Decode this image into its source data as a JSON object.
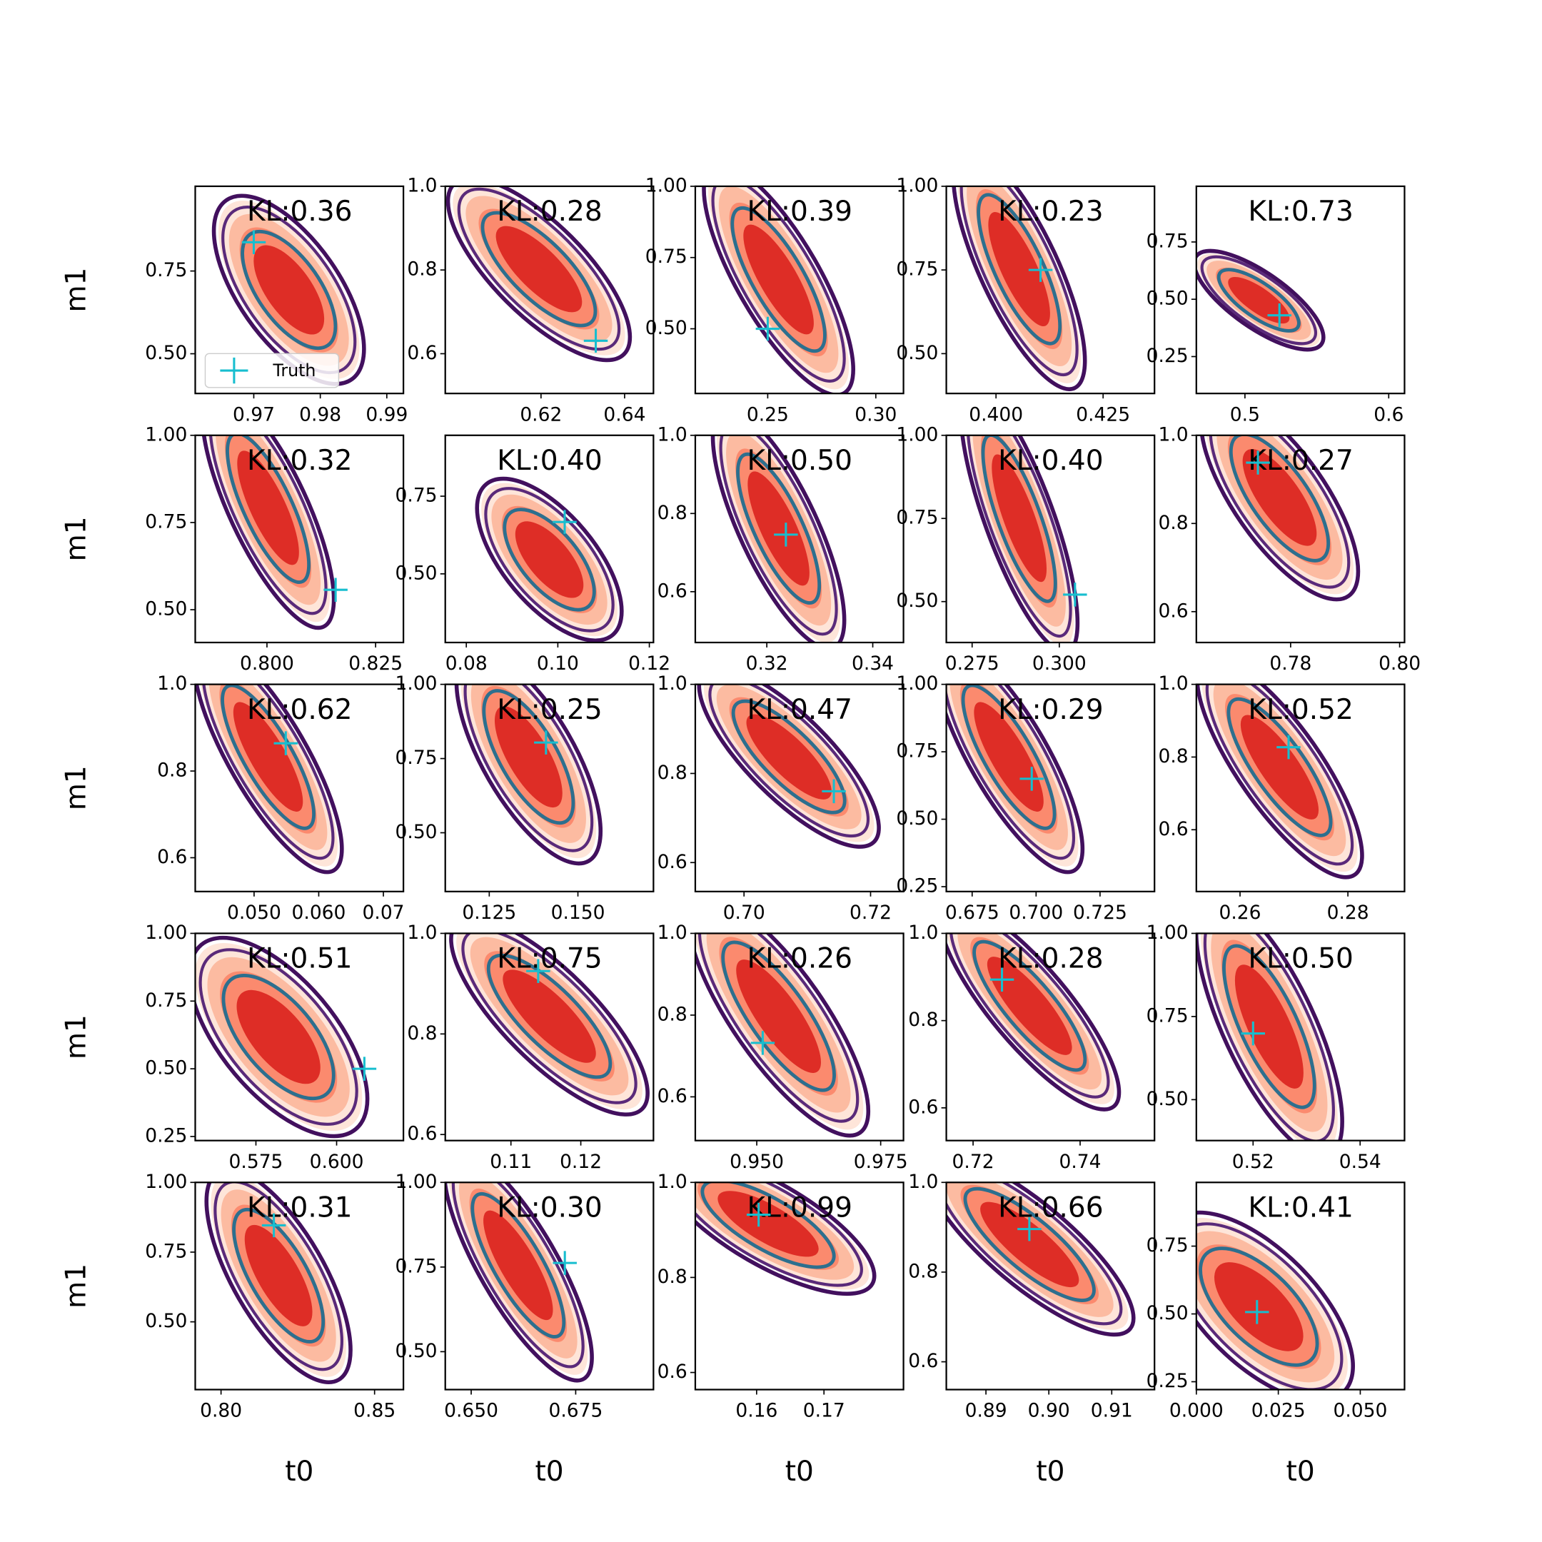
{
  "chart_data": [
    {
      "type": "scatter",
      "annotation": "KL:0.36",
      "ylabel": "m1",
      "legend": "lower left",
      "series": [
        {
          "name": "Truth",
          "color": "#17becf",
          "x": [
            0.97
          ],
          "y": [
            0.837
          ]
        }
      ],
      "xlim": [
        0.9612,
        0.9925
      ],
      "ylim": [
        0.38,
        1.006
      ],
      "xticks": [
        0.97,
        0.98,
        0.99
      ],
      "yticks": [
        {
          "value": 0.5,
          "label": "0.50"
        },
        0.75
      ]
    },
    {
      "type": "scatter",
      "annotation": "KL:0.28",
      "series": [
        {
          "color": "#17becf",
          "x": [
            0.6331
          ],
          "y": [
            0.631
          ]
        }
      ],
      "xlim": [
        0.5971,
        0.6469
      ],
      "ylim": [
        0.505,
        1.0
      ],
      "xticks": [
        0.62,
        0.64
      ],
      "yticks": [
        0.6,
        0.8,
        {
          "value": 1.0,
          "label": "1.0"
        }
      ]
    },
    {
      "type": "scatter",
      "annotation": "KL:0.39",
      "series": [
        {
          "color": "#17becf",
          "x": [
            0.25
          ],
          "y": [
            0.5
          ]
        }
      ],
      "xlim": [
        0.2165,
        0.3128
      ],
      "ylim": [
        0.273,
        1.0
      ],
      "xticks": [
        0.25,
        {
          "value": 0.3,
          "label": "0.30"
        }
      ],
      "yticks": [
        {
          "value": 0.5,
          "label": "0.50"
        },
        0.75,
        {
          "value": 1.0,
          "label": "1.00"
        }
      ]
    },
    {
      "type": "scatter",
      "annotation": "KL:0.23",
      "series": [
        {
          "color": "#17becf",
          "x": [
            0.4104
          ],
          "y": [
            0.75
          ]
        }
      ],
      "xlim": [
        0.3884,
        0.437
      ],
      "ylim": [
        0.381,
        1.0
      ],
      "xticks": [
        {
          "value": 0.4,
          "label": "0.400"
        },
        0.425
      ],
      "yticks": [
        {
          "value": 0.5,
          "label": "0.50"
        },
        0.75,
        {
          "value": 1.0,
          "label": "1.00"
        }
      ]
    },
    {
      "type": "scatter",
      "annotation": "KL:0.73",
      "series": [
        {
          "color": "#17becf",
          "x": [
            0.524
          ],
          "y": [
            0.43
          ]
        }
      ],
      "xlim": [
        0.4662,
        0.611
      ],
      "ylim": [
        0.089,
        0.993
      ],
      "xticks": [
        0.5,
        0.6
      ],
      "yticks": [
        0.25,
        {
          "value": 0.5,
          "label": "0.50"
        },
        0.75
      ]
    },
    {
      "type": "scatter",
      "annotation": "KL:0.32",
      "ylabel": "m1",
      "series": [
        {
          "color": "#17becf",
          "x": [
            0.8158
          ],
          "y": [
            0.557
          ]
        }
      ],
      "xlim": [
        0.7835,
        0.8314
      ],
      "ylim": [
        0.406,
        1.0
      ],
      "xticks": [
        {
          "value": 0.8,
          "label": "0.800"
        },
        0.825
      ],
      "yticks": [
        {
          "value": 0.5,
          "label": "0.50"
        },
        0.75,
        {
          "value": 1.0,
          "label": "1.00"
        }
      ]
    },
    {
      "type": "scatter",
      "annotation": "KL:0.40",
      "series": [
        {
          "color": "#17becf",
          "x": [
            0.1015
          ],
          "y": [
            0.667
          ]
        }
      ],
      "xlim": [
        0.0754,
        0.1209
      ],
      "ylim": [
        0.279,
        0.946
      ],
      "xticks": [
        0.08,
        {
          "value": 0.1,
          "label": "0.10"
        },
        0.12
      ],
      "yticks": [
        {
          "value": 0.5,
          "label": "0.50"
        },
        0.75
      ]
    },
    {
      "type": "scatter",
      "annotation": "KL:0.50",
      "series": [
        {
          "color": "#17becf",
          "x": [
            0.3236
          ],
          "y": [
            0.746
          ]
        }
      ],
      "xlim": [
        0.3065,
        0.3458
      ],
      "ylim": [
        0.47,
        1.0
      ],
      "xticks": [
        0.32,
        0.34
      ],
      "yticks": [
        0.6,
        0.8,
        {
          "value": 1.0,
          "label": "1.0"
        }
      ]
    },
    {
      "type": "scatter",
      "annotation": "KL:0.40",
      "series": [
        {
          "color": "#17becf",
          "x": [
            0.3045
          ],
          "y": [
            0.521
          ]
        }
      ],
      "xlim": [
        0.2676,
        0.3273
      ],
      "ylim": [
        0.377,
        1.0
      ],
      "xticks": [
        0.275,
        {
          "value": 0.3,
          "label": "0.300"
        }
      ],
      "yticks": [
        {
          "value": 0.5,
          "label": "0.50"
        },
        0.75,
        {
          "value": 1.0,
          "label": "1.00"
        }
      ]
    },
    {
      "type": "scatter",
      "annotation": "KL:0.27",
      "series": [
        {
          "color": "#17becf",
          "x": [
            0.774
          ],
          "y": [
            0.938
          ]
        }
      ],
      "xlim": [
        0.7627,
        0.8009
      ],
      "ylim": [
        0.53,
        1.0
      ],
      "xticks": [
        0.78,
        {
          "value": 0.8,
          "label": "0.80"
        }
      ],
      "yticks": [
        0.6,
        0.8,
        {
          "value": 1.0,
          "label": "1.0"
        }
      ]
    },
    {
      "type": "scatter",
      "annotation": "KL:0.62",
      "ylabel": "m1",
      "series": [
        {
          "color": "#17becf",
          "x": [
            0.0549
          ],
          "y": [
            0.864
          ]
        }
      ],
      "xlim": [
        0.0409,
        0.0731
      ],
      "ylim": [
        0.522,
        1.0
      ],
      "xticks": [
        {
          "value": 0.05,
          "label": "0.050"
        },
        {
          "value": 0.06,
          "label": "0.060"
        },
        0.07
      ],
      "yticks": [
        0.6,
        0.8,
        {
          "value": 1.0,
          "label": "1.0"
        }
      ]
    },
    {
      "type": "scatter",
      "annotation": "KL:0.25",
      "series": [
        {
          "color": "#17becf",
          "x": [
            0.141
          ],
          "y": [
            0.804
          ]
        }
      ],
      "xlim": [
        0.1126,
        0.1713
      ],
      "ylim": [
        0.302,
        1.0
      ],
      "xticks": [
        0.125,
        {
          "value": 0.15,
          "label": "0.150"
        }
      ],
      "yticks": [
        {
          "value": 0.5,
          "label": "0.50"
        },
        0.75,
        {
          "value": 1.0,
          "label": "1.00"
        }
      ]
    },
    {
      "type": "scatter",
      "annotation": "KL:0.47",
      "series": [
        {
          "color": "#17becf",
          "x": [
            0.7142
          ],
          "y": [
            0.76
          ]
        }
      ],
      "xlim": [
        0.6923,
        0.7252
      ],
      "ylim": [
        0.535,
        1.0
      ],
      "xticks": [
        {
          "value": 0.7,
          "label": "0.70"
        },
        0.72
      ],
      "yticks": [
        0.6,
        0.8,
        {
          "value": 1.0,
          "label": "1.0"
        }
      ]
    },
    {
      "type": "scatter",
      "annotation": "KL:0.29",
      "series": [
        {
          "color": "#17becf",
          "x": [
            0.6983
          ],
          "y": [
            0.65
          ]
        }
      ],
      "xlim": [
        0.6649,
        0.7463
      ],
      "ylim": [
        0.232,
        1.0
      ],
      "xticks": [
        0.675,
        {
          "value": 0.7,
          "label": "0.700"
        },
        0.725
      ],
      "yticks": [
        0.25,
        {
          "value": 0.5,
          "label": "0.50"
        },
        0.75,
        {
          "value": 1.0,
          "label": "1.00"
        }
      ]
    },
    {
      "type": "scatter",
      "annotation": "KL:0.52",
      "series": [
        {
          "color": "#17becf",
          "x": [
            0.269
          ],
          "y": [
            0.827
          ]
        }
      ],
      "xlim": [
        0.2519,
        0.2905
      ],
      "ylim": [
        0.43,
        1.0
      ],
      "xticks": [
        0.26,
        0.28
      ],
      "yticks": [
        0.6,
        0.8,
        {
          "value": 1.0,
          "label": "1.0"
        }
      ]
    },
    {
      "type": "scatter",
      "annotation": "KL:0.51",
      "ylabel": "m1",
      "series": [
        {
          "color": "#17becf",
          "x": [
            0.6086
          ],
          "y": [
            0.5
          ]
        }
      ],
      "xlim": [
        0.5562,
        0.6207
      ],
      "ylim": [
        0.235,
        1.0
      ],
      "xticks": [
        0.575,
        {
          "value": 0.6,
          "label": "0.600"
        }
      ],
      "yticks": [
        0.25,
        {
          "value": 0.5,
          "label": "0.50"
        },
        0.75,
        {
          "value": 1.0,
          "label": "1.00"
        }
      ]
    },
    {
      "type": "scatter",
      "annotation": "KL:0.75",
      "series": [
        {
          "color": "#17becf",
          "x": [
            0.1139
          ],
          "y": [
            0.925
          ]
        }
      ],
      "xlim": [
        0.1006,
        0.1304
      ],
      "ylim": [
        0.588,
        1.0
      ],
      "xticks": [
        0.11,
        0.12
      ],
      "yticks": [
        0.6,
        0.8,
        {
          "value": 1.0,
          "label": "1.0"
        }
      ]
    },
    {
      "type": "scatter",
      "annotation": "KL:0.26",
      "series": [
        {
          "color": "#17becf",
          "x": [
            0.9512
          ],
          "y": [
            0.732
          ]
        }
      ],
      "xlim": [
        0.9376,
        0.9796
      ],
      "ylim": [
        0.493,
        1.0
      ],
      "xticks": [
        {
          "value": 0.95,
          "label": "0.950"
        },
        0.975
      ],
      "yticks": [
        0.6,
        0.8,
        {
          "value": 1.0,
          "label": "1.0"
        }
      ]
    },
    {
      "type": "scatter",
      "annotation": "KL:0.28",
      "series": [
        {
          "color": "#17becf",
          "x": [
            0.7254
          ],
          "y": [
            0.894
          ]
        }
      ],
      "xlim": [
        0.715,
        0.7539
      ],
      "ylim": [
        0.525,
        1.0
      ],
      "xticks": [
        0.72,
        0.74
      ],
      "yticks": [
        0.6,
        0.8,
        {
          "value": 1.0,
          "label": "1.0"
        }
      ]
    },
    {
      "type": "scatter",
      "annotation": "KL:0.50",
      "series": [
        {
          "color": "#17becf",
          "x": [
            0.52
          ],
          "y": [
            0.699
          ]
        }
      ],
      "xlim": [
        0.5094,
        0.5483
      ],
      "ylim": [
        0.377,
        1.0
      ],
      "xticks": [
        0.52,
        0.54
      ],
      "yticks": [
        {
          "value": 0.5,
          "label": "0.50"
        },
        0.75,
        {
          "value": 1.0,
          "label": "1.00"
        }
      ]
    },
    {
      "type": "scatter",
      "annotation": "KL:0.31",
      "ylabel": "m1",
      "xlabel": "t0",
      "series": [
        {
          "color": "#17becf",
          "x": [
            0.8172
          ],
          "y": [
            0.846
          ]
        }
      ],
      "xlim": [
        0.7916,
        0.8594
      ],
      "ylim": [
        0.257,
        1.0
      ],
      "xticks": [
        {
          "value": 0.8,
          "label": "0.80"
        },
        0.85
      ],
      "yticks": [
        {
          "value": 0.5,
          "label": "0.50"
        },
        0.75,
        {
          "value": 1.0,
          "label": "1.00"
        }
      ]
    },
    {
      "type": "scatter",
      "annotation": "KL:0.30",
      "xlabel": "t0",
      "series": [
        {
          "color": "#17becf",
          "x": [
            0.6724
          ],
          "y": [
            0.762
          ]
        }
      ],
      "xlim": [
        0.6438,
        0.6936
      ],
      "ylim": [
        0.388,
        1.0
      ],
      "xticks": [
        {
          "value": 0.65,
          "label": "0.650"
        },
        0.675
      ],
      "yticks": [
        {
          "value": 0.5,
          "label": "0.50"
        },
        0.75,
        {
          "value": 1.0,
          "label": "1.00"
        }
      ]
    },
    {
      "type": "scatter",
      "annotation": "KL:0.99",
      "xlabel": "t0",
      "series": [
        {
          "color": "#17becf",
          "x": [
            0.1603
          ],
          "y": [
            0.932
          ]
        }
      ],
      "xlim": [
        0.1509,
        0.1818
      ],
      "ylim": [
        0.564,
        1.0
      ],
      "xticks": [
        0.16,
        0.17
      ],
      "yticks": [
        0.6,
        0.8,
        {
          "value": 1.0,
          "label": "1.0"
        }
      ]
    },
    {
      "type": "scatter",
      "annotation": "KL:0.66",
      "xlabel": "t0",
      "series": [
        {
          "color": "#17becf",
          "x": [
            0.8969
          ],
          "y": [
            0.896
          ]
        }
      ],
      "xlim": [
        0.8837,
        0.9168
      ],
      "ylim": [
        0.538,
        1.0
      ],
      "xticks": [
        0.89,
        {
          "value": 0.9,
          "label": "0.90"
        },
        0.91
      ],
      "yticks": [
        0.6,
        0.8,
        {
          "value": 1.0,
          "label": "1.0"
        }
      ]
    },
    {
      "type": "scatter",
      "annotation": "KL:0.41",
      "xlabel": "t0",
      "series": [
        {
          "color": "#17becf",
          "x": [
            0.0185
          ],
          "y": [
            0.507
          ]
        }
      ],
      "xlim": [
        0.0,
        0.0635
      ],
      "ylim": [
        0.221,
        0.985
      ],
      "xticks": [
        {
          "value": 0,
          "label": "0.000"
        },
        0.025,
        {
          "value": 0.05,
          "label": "0.050"
        }
      ],
      "yticks": [
        0.25,
        {
          "value": 0.5,
          "label": "0.50"
        },
        0.75
      ]
    }
  ]
}
